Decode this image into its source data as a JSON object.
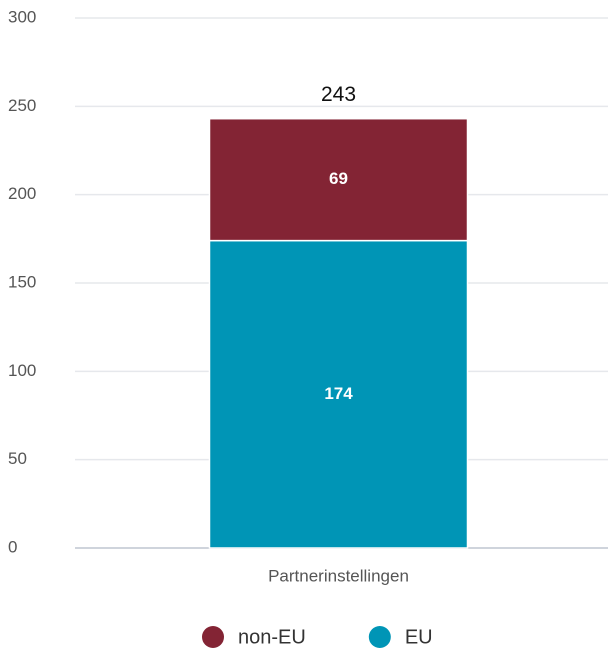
{
  "chart_data": {
    "type": "stacked_bar",
    "categories": [
      "Partnerinstellingen"
    ],
    "series": [
      {
        "name": "non-EU",
        "color": "#832434",
        "values": [
          69
        ]
      },
      {
        "name": "EU",
        "color": "#0095b6",
        "values": [
          174
        ]
      }
    ],
    "totals": [
      243
    ],
    "ylim": [
      0,
      300
    ],
    "yticks": [
      0,
      50,
      100,
      150,
      200,
      250,
      300
    ],
    "grid": true,
    "legend": "bottom"
  }
}
